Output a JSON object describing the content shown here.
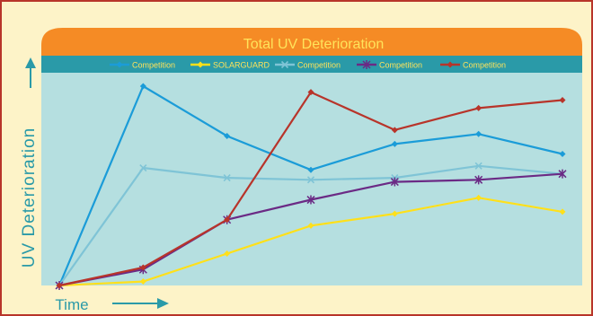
{
  "chart_data": {
    "type": "line",
    "title": "Total UV Deterioration",
    "xlabel": "Time",
    "ylabel": "UV Deterioration",
    "grid": false,
    "legend_position": "top",
    "ylim": [
      0,
      100
    ],
    "x": [
      0,
      1,
      2,
      3,
      4,
      5,
      6
    ],
    "series": [
      {
        "name": "Competition",
        "color": "#1b9cd8",
        "marker": "diamond",
        "values": [
          0,
          100,
          75,
          58,
          71,
          76,
          66
        ]
      },
      {
        "name": "SOLARGUARD",
        "color": "#ffe01a",
        "marker": "diamond",
        "values": [
          0,
          2,
          16,
          30,
          36,
          44,
          37
        ]
      },
      {
        "name": "Competition",
        "color": "#7fc4d6",
        "marker": "x",
        "values": [
          0,
          59,
          54,
          53,
          54,
          60,
          56
        ]
      },
      {
        "name": "Competition",
        "color": "#6b2a85",
        "marker": "star",
        "values": [
          0,
          8,
          33,
          43,
          52,
          53,
          56
        ]
      },
      {
        "name": "Competition",
        "color": "#b8342a",
        "marker": "diamond",
        "values": [
          0,
          9,
          33,
          97,
          78,
          89,
          93
        ]
      }
    ]
  },
  "colors": {
    "background": "#fdf3c8",
    "border": "#b8342a",
    "title_bar": "#f58b25",
    "title_text": "#ffe35a",
    "legend_bar": "#2a9aa8",
    "legend_text": "#ffe35a",
    "plot_area": "#b5dfe0",
    "axis_text": "#2a9aa8",
    "arrow": "#2a9aa8"
  }
}
